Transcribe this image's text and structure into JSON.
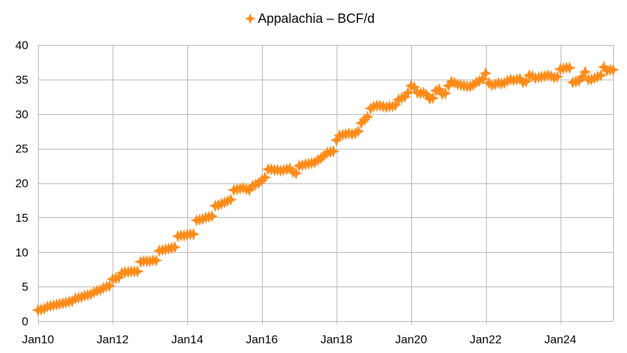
{
  "chart_data": {
    "type": "scatter",
    "x_axis": {
      "type": "date",
      "tick_labels": [
        "Jan10",
        "Jan12",
        "Jan14",
        "Jan16",
        "Jan18",
        "Jan20",
        "Jan22",
        "Jan24"
      ],
      "tick_dates": [
        "2010-01",
        "2012-01",
        "2014-01",
        "2016-01",
        "2018-01",
        "2020-01",
        "2022-01",
        "2024-01"
      ],
      "range": [
        "2010-01",
        "2025-06"
      ],
      "grid": true
    },
    "y_axis": {
      "range": [
        0,
        40
      ],
      "ticks": [
        0,
        5,
        10,
        15,
        20,
        25,
        30,
        35,
        40
      ],
      "grid": true
    },
    "legend_position": "top-center",
    "series": [
      {
        "name": "Appalachia – BCF/d",
        "color": "#ff8c1a",
        "marker": "four-point-star",
        "points": [
          [
            "2010-01",
            1.6
          ],
          [
            "2010-02",
            1.7
          ],
          [
            "2010-03",
            1.8
          ],
          [
            "2010-04",
            2.1
          ],
          [
            "2010-05",
            2.2
          ],
          [
            "2010-06",
            2.3
          ],
          [
            "2010-07",
            2.4
          ],
          [
            "2010-08",
            2.5
          ],
          [
            "2010-09",
            2.6
          ],
          [
            "2010-10",
            2.7
          ],
          [
            "2010-11",
            2.8
          ],
          [
            "2010-12",
            2.9
          ],
          [
            "2011-01",
            3.3
          ],
          [
            "2011-02",
            3.4
          ],
          [
            "2011-03",
            3.5
          ],
          [
            "2011-04",
            3.7
          ],
          [
            "2011-05",
            3.8
          ],
          [
            "2011-06",
            3.9
          ],
          [
            "2011-07",
            4.2
          ],
          [
            "2011-08",
            4.4
          ],
          [
            "2011-09",
            4.5
          ],
          [
            "2011-10",
            4.8
          ],
          [
            "2011-11",
            5.0
          ],
          [
            "2011-12",
            5.1
          ],
          [
            "2012-01",
            6.1
          ],
          [
            "2012-02",
            6.2
          ],
          [
            "2012-03",
            6.3
          ],
          [
            "2012-04",
            7.0
          ],
          [
            "2012-05",
            7.1
          ],
          [
            "2012-06",
            7.1
          ],
          [
            "2012-07",
            7.2
          ],
          [
            "2012-08",
            7.2
          ],
          [
            "2012-09",
            7.2
          ],
          [
            "2012-10",
            8.6
          ],
          [
            "2012-11",
            8.7
          ],
          [
            "2012-12",
            8.7
          ],
          [
            "2013-01",
            8.7
          ],
          [
            "2013-02",
            8.8
          ],
          [
            "2013-03",
            8.8
          ],
          [
            "2013-04",
            10.2
          ],
          [
            "2013-05",
            10.3
          ],
          [
            "2013-06",
            10.4
          ],
          [
            "2013-07",
            10.5
          ],
          [
            "2013-08",
            10.6
          ],
          [
            "2013-09",
            10.7
          ],
          [
            "2013-10",
            12.3
          ],
          [
            "2013-11",
            12.4
          ],
          [
            "2013-12",
            12.4
          ],
          [
            "2014-01",
            12.5
          ],
          [
            "2014-02",
            12.6
          ],
          [
            "2014-03",
            12.6
          ],
          [
            "2014-04",
            14.6
          ],
          [
            "2014-05",
            14.7
          ],
          [
            "2014-06",
            14.8
          ],
          [
            "2014-07",
            15.0
          ],
          [
            "2014-08",
            15.1
          ],
          [
            "2014-09",
            15.2
          ],
          [
            "2014-10",
            16.7
          ],
          [
            "2014-11",
            16.8
          ],
          [
            "2014-12",
            17.0
          ],
          [
            "2015-01",
            17.2
          ],
          [
            "2015-02",
            17.4
          ],
          [
            "2015-03",
            17.6
          ],
          [
            "2015-04",
            19.0
          ],
          [
            "2015-05",
            19.1
          ],
          [
            "2015-06",
            19.2
          ],
          [
            "2015-07",
            19.3
          ],
          [
            "2015-08",
            19.1
          ],
          [
            "2015-09",
            19.0
          ],
          [
            "2015-10",
            19.6
          ],
          [
            "2015-11",
            19.8
          ],
          [
            "2015-12",
            20.0
          ],
          [
            "2016-01",
            20.4
          ],
          [
            "2016-02",
            20.8
          ],
          [
            "2016-03",
            22.0
          ],
          [
            "2016-04",
            22.0
          ],
          [
            "2016-05",
            21.9
          ],
          [
            "2016-06",
            21.9
          ],
          [
            "2016-07",
            21.8
          ],
          [
            "2016-08",
            21.9
          ],
          [
            "2016-09",
            22.0
          ],
          [
            "2016-10",
            22.1
          ],
          [
            "2016-11",
            21.6
          ],
          [
            "2016-12",
            21.4
          ],
          [
            "2017-01",
            22.5
          ],
          [
            "2017-02",
            22.6
          ],
          [
            "2017-03",
            22.7
          ],
          [
            "2017-04",
            22.8
          ],
          [
            "2017-05",
            22.9
          ],
          [
            "2017-06",
            23.0
          ],
          [
            "2017-07",
            23.3
          ],
          [
            "2017-08",
            23.6
          ],
          [
            "2017-09",
            24.0
          ],
          [
            "2017-10",
            24.4
          ],
          [
            "2017-11",
            24.5
          ],
          [
            "2017-12",
            24.6
          ],
          [
            "2018-01",
            26.2
          ],
          [
            "2018-02",
            26.9
          ],
          [
            "2018-03",
            27.0
          ],
          [
            "2018-04",
            27.1
          ],
          [
            "2018-05",
            27.2
          ],
          [
            "2018-06",
            27.1
          ],
          [
            "2018-07",
            27.2
          ],
          [
            "2018-08",
            27.5
          ],
          [
            "2018-09",
            28.7
          ],
          [
            "2018-10",
            29.2
          ],
          [
            "2018-11",
            29.6
          ],
          [
            "2018-12",
            30.8
          ],
          [
            "2019-01",
            31.1
          ],
          [
            "2019-02",
            31.2
          ],
          [
            "2019-03",
            31.2
          ],
          [
            "2019-04",
            31.1
          ],
          [
            "2019-05",
            31.0
          ],
          [
            "2019-06",
            31.1
          ],
          [
            "2019-07",
            31.1
          ],
          [
            "2019-08",
            31.3
          ],
          [
            "2019-09",
            32.1
          ],
          [
            "2019-10",
            32.3
          ],
          [
            "2019-11",
            32.5
          ],
          [
            "2019-12",
            33.1
          ],
          [
            "2020-01",
            34.1
          ],
          [
            "2020-02",
            33.9
          ],
          [
            "2020-03",
            33.1
          ],
          [
            "2020-04",
            33.0
          ],
          [
            "2020-05",
            33.1
          ],
          [
            "2020-06",
            32.8
          ],
          [
            "2020-07",
            32.2
          ],
          [
            "2020-08",
            32.3
          ],
          [
            "2020-09",
            33.4
          ],
          [
            "2020-10",
            33.6
          ],
          [
            "2020-11",
            32.9
          ],
          [
            "2020-12",
            33.0
          ],
          [
            "2021-01",
            34.1
          ],
          [
            "2021-02",
            34.7
          ],
          [
            "2021-03",
            34.5
          ],
          [
            "2021-04",
            34.3
          ],
          [
            "2021-05",
            34.2
          ],
          [
            "2021-06",
            34.1
          ],
          [
            "2021-07",
            34.0
          ],
          [
            "2021-08",
            34.0
          ],
          [
            "2021-09",
            34.2
          ],
          [
            "2021-10",
            34.6
          ],
          [
            "2021-11",
            34.8
          ],
          [
            "2021-12",
            35.1
          ],
          [
            "2022-01",
            35.9
          ],
          [
            "2022-02",
            34.5
          ],
          [
            "2022-03",
            34.2
          ],
          [
            "2022-04",
            34.3
          ],
          [
            "2022-05",
            34.5
          ],
          [
            "2022-06",
            34.4
          ],
          [
            "2022-07",
            34.5
          ],
          [
            "2022-08",
            34.8
          ],
          [
            "2022-09",
            35.0
          ],
          [
            "2022-10",
            34.9
          ],
          [
            "2022-11",
            35.0
          ],
          [
            "2022-12",
            35.1
          ],
          [
            "2023-01",
            34.6
          ],
          [
            "2023-02",
            34.7
          ],
          [
            "2023-03",
            35.6
          ],
          [
            "2023-04",
            35.5
          ],
          [
            "2023-05",
            35.2
          ],
          [
            "2023-06",
            35.3
          ],
          [
            "2023-07",
            35.4
          ],
          [
            "2023-08",
            35.5
          ],
          [
            "2023-09",
            35.6
          ],
          [
            "2023-10",
            35.5
          ],
          [
            "2023-11",
            35.3
          ],
          [
            "2023-12",
            35.4
          ],
          [
            "2024-01",
            36.5
          ],
          [
            "2024-02",
            36.6
          ],
          [
            "2024-03",
            36.7
          ],
          [
            "2024-04",
            36.7
          ],
          [
            "2024-05",
            34.6
          ],
          [
            "2024-06",
            34.7
          ],
          [
            "2024-07",
            34.8
          ],
          [
            "2024-08",
            35.4
          ],
          [
            "2024-09",
            36.1
          ],
          [
            "2024-10",
            35.0
          ],
          [
            "2024-11",
            35.0
          ],
          [
            "2024-12",
            35.2
          ],
          [
            "2025-01",
            35.4
          ],
          [
            "2025-02",
            35.6
          ],
          [
            "2025-03",
            36.8
          ],
          [
            "2025-04",
            36.3
          ],
          [
            "2025-05",
            36.4
          ],
          [
            "2025-06",
            36.4
          ]
        ]
      }
    ]
  }
}
